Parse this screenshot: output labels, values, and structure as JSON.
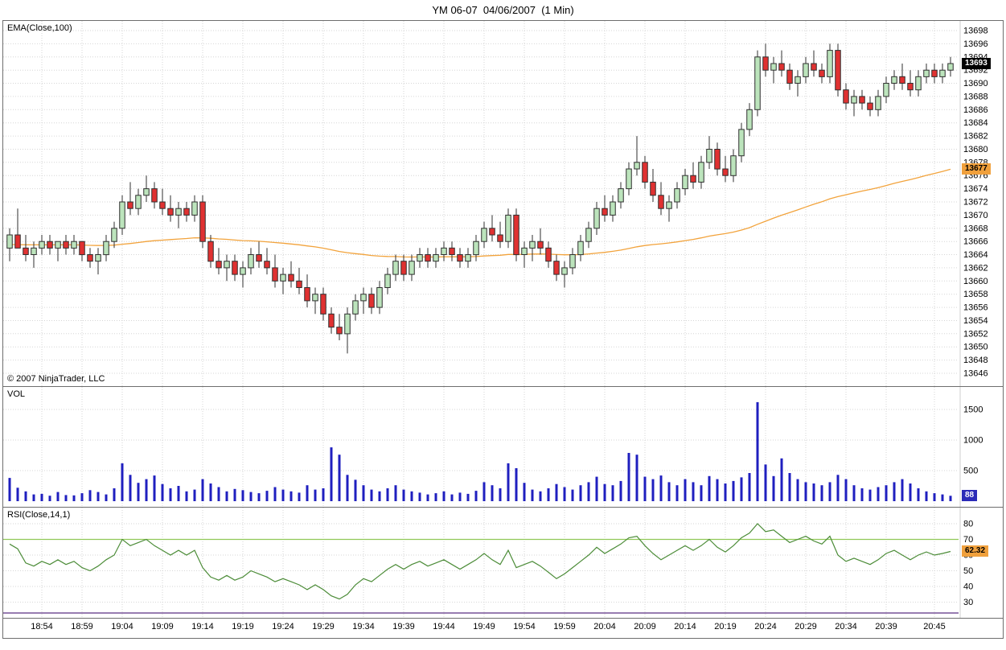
{
  "title": "YM 06-07  04/06/2007  (1 Min)",
  "copyright": "© 2007 NinjaTrader, LLC",
  "panels": {
    "price": {
      "label": "EMA(Close,100)"
    },
    "volume": {
      "label": "VOL"
    },
    "rsi": {
      "label": "RSI(Close,14,1)"
    }
  },
  "badges": {
    "last_price": {
      "text": "13693",
      "value": 13693,
      "bg": "#000000",
      "fg": "#ffffff"
    },
    "ema": {
      "text": "13677",
      "value": 13677,
      "bg": "#f0a03c",
      "fg": "#000000"
    },
    "volume": {
      "text": "88",
      "value": 88,
      "bg": "#2b2bb8",
      "fg": "#ffffff"
    },
    "rsi": {
      "text": "62.32",
      "value": 62.32,
      "bg": "#f0a03c",
      "fg": "#000000"
    }
  },
  "chart_data": {
    "type": "candlestick",
    "title": "YM 06-07  04/06/2007  (1 Min)",
    "instrument": "YM 06-07",
    "date": "04/06/2007",
    "interval": "1 Min",
    "start_time": "18:50",
    "price_axis": {
      "min": 13646,
      "max": 13698,
      "step": 2
    },
    "volume_axis": {
      "ticks": [
        500,
        1000,
        1500
      ]
    },
    "rsi_axis": {
      "ticks": [
        30,
        40,
        50,
        60,
        70,
        80
      ],
      "upper_band": 70,
      "lower_band": 30
    },
    "time_ticks": [
      {
        "label": "18:54",
        "bar": 4
      },
      {
        "label": "18:59",
        "bar": 9
      },
      {
        "label": "19:04",
        "bar": 14
      },
      {
        "label": "19:09",
        "bar": 19
      },
      {
        "label": "19:14",
        "bar": 24
      },
      {
        "label": "19:19",
        "bar": 29
      },
      {
        "label": "19:24",
        "bar": 34
      },
      {
        "label": "19:29",
        "bar": 39
      },
      {
        "label": "19:34",
        "bar": 44
      },
      {
        "label": "19:39",
        "bar": 49
      },
      {
        "label": "19:44",
        "bar": 54
      },
      {
        "label": "19:49",
        "bar": 59
      },
      {
        "label": "19:54",
        "bar": 64
      },
      {
        "label": "19:59",
        "bar": 69
      },
      {
        "label": "20:04",
        "bar": 74
      },
      {
        "label": "20:09",
        "bar": 79
      },
      {
        "label": "20:14",
        "bar": 84
      },
      {
        "label": "20:19",
        "bar": 89
      },
      {
        "label": "20:24",
        "bar": 94
      },
      {
        "label": "20:29",
        "bar": 99
      },
      {
        "label": "20:34",
        "bar": 104
      },
      {
        "label": "20:39",
        "bar": 109
      },
      {
        "label": "20:45",
        "bar": 115
      }
    ],
    "ema": {
      "period": 100,
      "seed": 13665.5,
      "color": "#f2a33c"
    },
    "colors": {
      "up": "#bce4bc",
      "down": "#e03131",
      "outline": "#2f2f2f",
      "volume": "#1f1fbf",
      "rsi_line": "#4c8c38",
      "upper_band": "#90c857",
      "lower_band": "#5a2d82",
      "grid": "#d6d6d6"
    },
    "ohlc": [
      [
        13665,
        13668,
        13663,
        13667
      ],
      [
        13667,
        13671,
        13665,
        13665
      ],
      [
        13665,
        13667,
        13663,
        13664
      ],
      [
        13664,
        13666,
        13662,
        13665
      ],
      [
        13665,
        13667,
        13664,
        13666
      ],
      [
        13666,
        13667,
        13664,
        13665
      ],
      [
        13665,
        13666,
        13663,
        13666
      ],
      [
        13666,
        13667,
        13664,
        13665
      ],
      [
        13665,
        13667,
        13664,
        13666
      ],
      [
        13666,
        13666,
        13663,
        13664
      ],
      [
        13664,
        13665,
        13662,
        13663
      ],
      [
        13663,
        13665,
        13661,
        13664
      ],
      [
        13664,
        13667,
        13663,
        13666
      ],
      [
        13666,
        13669,
        13665,
        13668
      ],
      [
        13668,
        13673,
        13667,
        13672
      ],
      [
        13672,
        13675,
        13670,
        13671
      ],
      [
        13671,
        13674,
        13670,
        13673
      ],
      [
        13673,
        13676,
        13672,
        13674
      ],
      [
        13674,
        13675,
        13671,
        13672
      ],
      [
        13672,
        13674,
        13670,
        13671
      ],
      [
        13671,
        13673,
        13669,
        13670
      ],
      [
        13670,
        13672,
        13668,
        13671
      ],
      [
        13671,
        13672,
        13669,
        13670
      ],
      [
        13670,
        13673,
        13669,
        13672
      ],
      [
        13672,
        13673,
        13665,
        13666
      ],
      [
        13666,
        13667,
        13662,
        13663
      ],
      [
        13663,
        13665,
        13661,
        13662
      ],
      [
        13662,
        13664,
        13660,
        13663
      ],
      [
        13663,
        13664,
        13660,
        13661
      ],
      [
        13661,
        13663,
        13659,
        13662
      ],
      [
        13662,
        13665,
        13661,
        13664
      ],
      [
        13664,
        13666,
        13662,
        13663
      ],
      [
        13663,
        13665,
        13661,
        13662
      ],
      [
        13662,
        13664,
        13659,
        13660
      ],
      [
        13660,
        13662,
        13658,
        13661
      ],
      [
        13661,
        13663,
        13659,
        13660
      ],
      [
        13660,
        13662,
        13658,
        13659
      ],
      [
        13659,
        13661,
        13656,
        13657
      ],
      [
        13657,
        13659,
        13655,
        13658
      ],
      [
        13658,
        13659,
        13654,
        13655
      ],
      [
        13655,
        13656,
        13652,
        13653
      ],
      [
        13653,
        13655,
        13651,
        13652
      ],
      [
        13652,
        13656,
        13649,
        13655
      ],
      [
        13655,
        13658,
        13654,
        13657
      ],
      [
        13657,
        13659,
        13655,
        13658
      ],
      [
        13658,
        13659,
        13655,
        13656
      ],
      [
        13656,
        13660,
        13655,
        13659
      ],
      [
        13659,
        13662,
        13658,
        13661
      ],
      [
        13661,
        13664,
        13660,
        13663
      ],
      [
        13663,
        13664,
        13660,
        13661
      ],
      [
        13661,
        13664,
        13660,
        13663
      ],
      [
        13663,
        13665,
        13662,
        13664
      ],
      [
        13664,
        13665,
        13662,
        13663
      ],
      [
        13663,
        13665,
        13662,
        13664
      ],
      [
        13664,
        13666,
        13663,
        13665
      ],
      [
        13665,
        13666,
        13663,
        13664
      ],
      [
        13664,
        13665,
        13662,
        13663
      ],
      [
        13663,
        13665,
        13662,
        13664
      ],
      [
        13664,
        13667,
        13663,
        13666
      ],
      [
        13666,
        13669,
        13665,
        13668
      ],
      [
        13668,
        13670,
        13666,
        13667
      ],
      [
        13667,
        13669,
        13665,
        13666
      ],
      [
        13666,
        13671,
        13665,
        13670
      ],
      [
        13670,
        13671,
        13663,
        13664
      ],
      [
        13664,
        13666,
        13662,
        13665
      ],
      [
        13665,
        13667,
        13663,
        13666
      ],
      [
        13666,
        13668,
        13664,
        13665
      ],
      [
        13665,
        13666,
        13662,
        13663
      ],
      [
        13663,
        13664,
        13660,
        13661
      ],
      [
        13661,
        13663,
        13659,
        13662
      ],
      [
        13662,
        13665,
        13661,
        13664
      ],
      [
        13664,
        13667,
        13663,
        13666
      ],
      [
        13666,
        13669,
        13665,
        13668
      ],
      [
        13668,
        13672,
        13667,
        13671
      ],
      [
        13671,
        13673,
        13669,
        13670
      ],
      [
        13670,
        13673,
        13669,
        13672
      ],
      [
        13672,
        13675,
        13671,
        13674
      ],
      [
        13674,
        13678,
        13673,
        13677
      ],
      [
        13677,
        13682,
        13676,
        13678
      ],
      [
        13678,
        13679,
        13674,
        13675
      ],
      [
        13675,
        13677,
        13672,
        13673
      ],
      [
        13673,
        13675,
        13670,
        13671
      ],
      [
        13671,
        13673,
        13669,
        13672
      ],
      [
        13672,
        13675,
        13671,
        13674
      ],
      [
        13674,
        13677,
        13673,
        13676
      ],
      [
        13676,
        13678,
        13674,
        13675
      ],
      [
        13675,
        13679,
        13674,
        13678
      ],
      [
        13678,
        13682,
        13677,
        13680
      ],
      [
        13680,
        13681,
        13676,
        13677
      ],
      [
        13677,
        13679,
        13675,
        13676
      ],
      [
        13676,
        13680,
        13675,
        13679
      ],
      [
        13679,
        13684,
        13678,
        13683
      ],
      [
        13683,
        13687,
        13682,
        13686
      ],
      [
        13686,
        13695,
        13685,
        13694
      ],
      [
        13694,
        13696,
        13691,
        13692
      ],
      [
        13692,
        13694,
        13690,
        13693
      ],
      [
        13693,
        13695,
        13691,
        13692
      ],
      [
        13692,
        13693,
        13689,
        13690
      ],
      [
        13690,
        13692,
        13688,
        13691
      ],
      [
        13691,
        13694,
        13690,
        13693
      ],
      [
        13693,
        13695,
        13691,
        13692
      ],
      [
        13692,
        13693,
        13690,
        13691
      ],
      [
        13691,
        13696,
        13690,
        13695
      ],
      [
        13695,
        13696,
        13688,
        13689
      ],
      [
        13689,
        13690,
        13686,
        13687
      ],
      [
        13687,
        13689,
        13685,
        13688
      ],
      [
        13688,
        13689,
        13686,
        13687
      ],
      [
        13687,
        13688,
        13685,
        13686
      ],
      [
        13686,
        13689,
        13685,
        13688
      ],
      [
        13688,
        13691,
        13687,
        13690
      ],
      [
        13690,
        13692,
        13689,
        13691
      ],
      [
        13691,
        13693,
        13689,
        13690
      ],
      [
        13690,
        13692,
        13688,
        13689
      ],
      [
        13689,
        13692,
        13688,
        13691
      ],
      [
        13691,
        13693,
        13690,
        13692
      ],
      [
        13692,
        13693,
        13690,
        13691
      ],
      [
        13691,
        13693,
        13690,
        13692
      ],
      [
        13692,
        13694,
        13691,
        13693
      ]
    ],
    "volume": [
      380,
      220,
      160,
      110,
      120,
      90,
      150,
      100,
      95,
      130,
      180,
      150,
      110,
      210,
      620,
      430,
      300,
      360,
      420,
      280,
      210,
      250,
      160,
      190,
      360,
      290,
      230,
      160,
      200,
      180,
      150,
      130,
      170,
      230,
      190,
      160,
      140,
      260,
      190,
      210,
      880,
      760,
      430,
      350,
      260,
      190,
      160,
      210,
      260,
      190,
      160,
      140,
      110,
      130,
      160,
      110,
      140,
      120,
      170,
      310,
      260,
      210,
      620,
      540,
      300,
      190,
      160,
      210,
      280,
      230,
      190,
      260,
      310,
      400,
      280,
      260,
      330,
      790,
      760,
      400,
      360,
      420,
      310,
      260,
      360,
      310,
      260,
      410,
      360,
      290,
      330,
      390,
      460,
      1620,
      600,
      410,
      700,
      460,
      360,
      310,
      290,
      260,
      310,
      430,
      360,
      260,
      210,
      190,
      230,
      260,
      310,
      360,
      290,
      210,
      160,
      130,
      110,
      88
    ],
    "rsi": [
      67,
      64,
      55,
      53,
      56,
      54,
      57,
      54,
      56,
      52,
      50,
      53,
      57,
      60,
      70,
      66,
      68,
      70,
      66,
      63,
      60,
      63,
      60,
      63,
      52,
      46,
      44,
      47,
      44,
      46,
      50,
      48,
      46,
      43,
      45,
      43,
      41,
      38,
      41,
      38,
      34,
      32,
      35,
      41,
      45,
      43,
      47,
      51,
      54,
      51,
      54,
      56,
      53,
      55,
      57,
      54,
      51,
      54,
      57,
      61,
      57,
      54,
      63,
      52,
      54,
      56,
      53,
      49,
      45,
      48,
      52,
      56,
      60,
      65,
      61,
      64,
      67,
      71,
      72,
      66,
      61,
      57,
      60,
      63,
      66,
      63,
      66,
      70,
      65,
      62,
      66,
      71,
      74,
      80,
      75,
      76,
      72,
      68,
      70,
      72,
      69,
      67,
      72,
      60,
      56,
      58,
      56,
      54,
      57,
      61,
      63,
      60,
      57,
      60,
      62,
      60,
      61,
      62.32
    ]
  }
}
